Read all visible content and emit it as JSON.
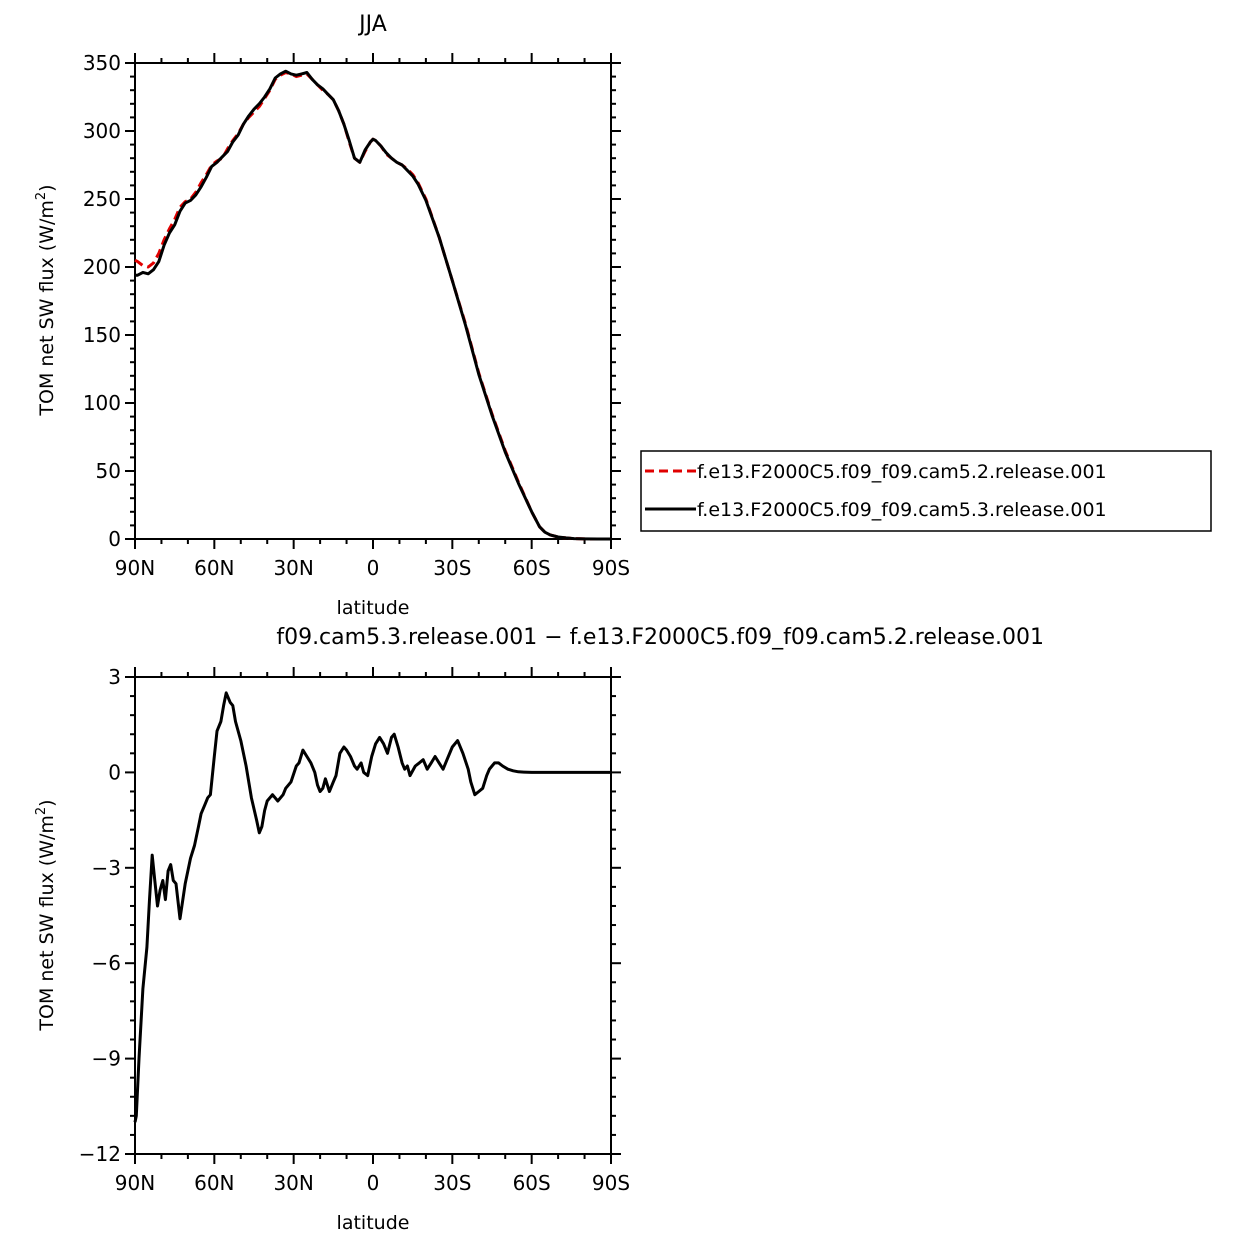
{
  "figure": {
    "colors": {
      "series_control": "#e00000",
      "series_test": "#000000",
      "axes": "#000000"
    }
  },
  "chart_data": [
    {
      "type": "line",
      "title": "JJA",
      "xlabel": "latitude",
      "ylabel": "TOM net SW flux (W/m",
      "ylabel_superscript": "2",
      "ylabel_suffix": ")",
      "xlim": [
        90,
        -90
      ],
      "ylim": [
        0,
        350
      ],
      "x_ticks": [
        90,
        60,
        30,
        0,
        -30,
        -60,
        -90
      ],
      "x_tick_labels": [
        "90N",
        "60N",
        "30N",
        "0",
        "30S",
        "60S",
        "90S"
      ],
      "y_ticks": [
        0,
        50,
        100,
        150,
        200,
        250,
        300,
        350
      ],
      "y_tick_labels": [
        "0",
        "50",
        "100",
        "150",
        "200",
        "250",
        "300",
        "350"
      ],
      "grid": false,
      "legend_position": "right",
      "series": [
        {
          "name": "f.e13.F2000C5.f09_f09.cam5.2.release.001",
          "style": "dashed",
          "color": "#e00000",
          "x": [
            90,
            89,
            87,
            85,
            83,
            81,
            79,
            77,
            75,
            73,
            71,
            69,
            67,
            65,
            63,
            61,
            59,
            57,
            55,
            53,
            51,
            49,
            47,
            45,
            43,
            41,
            39,
            37,
            35,
            33,
            31,
            29,
            27,
            25,
            23,
            21,
            19,
            17,
            15,
            13,
            11,
            9,
            7,
            5,
            3,
            1,
            0,
            -1,
            -3,
            -5,
            -7,
            -9,
            -11,
            -13,
            -15,
            -17,
            -20,
            -25,
            -30,
            -35,
            -40,
            -45,
            -50,
            -55,
            -60,
            -63,
            -65,
            -67,
            -70,
            -73,
            -76,
            -80,
            -85,
            -90
          ],
          "values": [
            205,
            204,
            201,
            200,
            203,
            210,
            220,
            228,
            235,
            244,
            248,
            250,
            255,
            262,
            268,
            275,
            278,
            280,
            287,
            293,
            298,
            305,
            310,
            314,
            318,
            324,
            330,
            338,
            341,
            343,
            342,
            340,
            341,
            342,
            338,
            334,
            330,
            327,
            323,
            315,
            305,
            292,
            280,
            277,
            285,
            292,
            294,
            293,
            289,
            283,
            280,
            277,
            275,
            272,
            268,
            262,
            250,
            222,
            190,
            158,
            122,
            92,
            65,
            42,
            20,
            9,
            5,
            3,
            1.5,
            0.8,
            0.3,
            0.1,
            0,
            0
          ]
        },
        {
          "name": "f.e13.F2000C5.f09_f09.cam5.3.release.001",
          "style": "solid",
          "color": "#000000",
          "x": [
            90,
            89,
            87,
            85,
            83,
            81,
            79,
            77,
            75,
            73,
            71,
            69,
            67,
            65,
            63,
            61,
            59,
            57,
            55,
            53,
            51,
            49,
            47,
            45,
            43,
            41,
            39,
            37,
            35,
            33,
            31,
            29,
            27,
            25,
            23,
            21,
            19,
            17,
            15,
            13,
            11,
            9,
            7,
            5,
            3,
            1,
            0,
            -1,
            -3,
            -5,
            -7,
            -9,
            -11,
            -13,
            -15,
            -17,
            -20,
            -25,
            -30,
            -35,
            -40,
            -45,
            -50,
            -55,
            -60,
            -63,
            -65,
            -67,
            -70,
            -73,
            -76,
            -80,
            -85,
            -90
          ],
          "values": [
            194,
            194,
            196,
            195,
            198,
            204,
            216,
            225,
            231,
            241,
            247,
            249,
            253,
            259,
            266,
            274,
            277,
            281,
            285,
            292,
            297,
            305,
            311,
            316,
            320,
            325,
            331,
            339,
            342,
            344,
            342,
            341,
            342,
            343,
            338,
            334,
            331,
            327,
            323,
            315,
            305,
            293,
            280,
            277,
            286,
            292,
            294,
            293,
            289,
            284,
            280,
            277,
            275,
            271,
            267,
            261,
            249,
            222,
            190,
            157,
            121,
            91,
            64,
            41,
            20,
            9,
            5,
            3,
            1.5,
            0.8,
            0.3,
            0.1,
            0,
            0
          ]
        }
      ]
    },
    {
      "type": "line",
      "title": "f09.cam5.3.release.001  −  f.e13.F2000C5.f09_f09.cam5.2.release.001",
      "xlabel": "latitude",
      "ylabel": "TOM net SW flux (W/m",
      "ylabel_superscript": "2",
      "ylabel_suffix": ")",
      "xlim": [
        90,
        -90
      ],
      "ylim": [
        -12,
        3
      ],
      "x_ticks": [
        90,
        60,
        30,
        0,
        -30,
        -60,
        -90
      ],
      "x_tick_labels": [
        "90N",
        "60N",
        "30N",
        "0",
        "30S",
        "60S",
        "90S"
      ],
      "y_ticks": [
        -12,
        -9,
        -6,
        -3,
        0,
        3
      ],
      "y_tick_labels": [
        "−12",
        "−9",
        "−6",
        "−3",
        "0",
        "3"
      ],
      "grid": false,
      "series": [
        {
          "style": "solid",
          "color": "#000000",
          "x": [
            90,
            89.5,
            88.5,
            87,
            85.5,
            84.5,
            83.5,
            82.5,
            81.5,
            80.5,
            79.5,
            78.5,
            77.5,
            76.5,
            75.5,
            74.5,
            73,
            71,
            69,
            67.5,
            66,
            65,
            63.5,
            62.5,
            61.5,
            60,
            59,
            57.5,
            56.5,
            55.5,
            54,
            53,
            52,
            50,
            48,
            46,
            44,
            43,
            42,
            41,
            40,
            38,
            36,
            34,
            33,
            31,
            29,
            28,
            26.5,
            25,
            23.5,
            22,
            21,
            20,
            19,
            18,
            16.5,
            15,
            14,
            12.5,
            11,
            10,
            8.5,
            7,
            6,
            4.5,
            3.5,
            2,
            0.5,
            -1,
            -2.5,
            -4,
            -5.5,
            -7,
            -8,
            -9.5,
            -11,
            -12,
            -13,
            -14,
            -16,
            -17.5,
            -19,
            -20.5,
            -22,
            -23.5,
            -25,
            -26.5,
            -28,
            -30,
            -32,
            -34,
            -36,
            -37,
            -38.5,
            -40,
            -41.5,
            -43,
            -44,
            -45,
            -46,
            -47.5,
            -49,
            -51,
            -53,
            -55,
            -57,
            -60,
            -62,
            -65,
            -68,
            -72,
            -76,
            -80,
            -85,
            -90
          ],
          "values": [
            -11,
            -10.8,
            -9,
            -6.8,
            -5.5,
            -4.0,
            -2.6,
            -3.4,
            -4.2,
            -3.7,
            -3.4,
            -4.0,
            -3.1,
            -2.9,
            -3.4,
            -3.5,
            -4.6,
            -3.5,
            -2.7,
            -2.3,
            -1.7,
            -1.3,
            -1.0,
            -0.8,
            -0.7,
            0.5,
            1.3,
            1.6,
            2.1,
            2.5,
            2.2,
            2.1,
            1.6,
            1.0,
            0.2,
            -0.8,
            -1.5,
            -1.9,
            -1.7,
            -1.2,
            -0.9,
            -0.7,
            -0.9,
            -0.7,
            -0.5,
            -0.3,
            0.2,
            0.3,
            0.7,
            0.5,
            0.3,
            0.0,
            -0.4,
            -0.6,
            -0.5,
            -0.2,
            -0.6,
            -0.3,
            -0.1,
            0.6,
            0.8,
            0.7,
            0.5,
            0.2,
            0.1,
            0.3,
            0.0,
            -0.1,
            0.5,
            0.9,
            1.1,
            0.9,
            0.6,
            1.1,
            1.2,
            0.8,
            0.3,
            0.1,
            0.2,
            -0.1,
            0.2,
            0.3,
            0.4,
            0.1,
            0.3,
            0.5,
            0.3,
            0.1,
            0.4,
            0.8,
            1.0,
            0.6,
            0.1,
            -0.3,
            -0.7,
            -0.6,
            -0.5,
            -0.1,
            0.1,
            0.2,
            0.3,
            0.3,
            0.2,
            0.1,
            0.05,
            0.02,
            0.01,
            0,
            0,
            0,
            0,
            0,
            0,
            0,
            0,
            0
          ]
        }
      ]
    }
  ]
}
